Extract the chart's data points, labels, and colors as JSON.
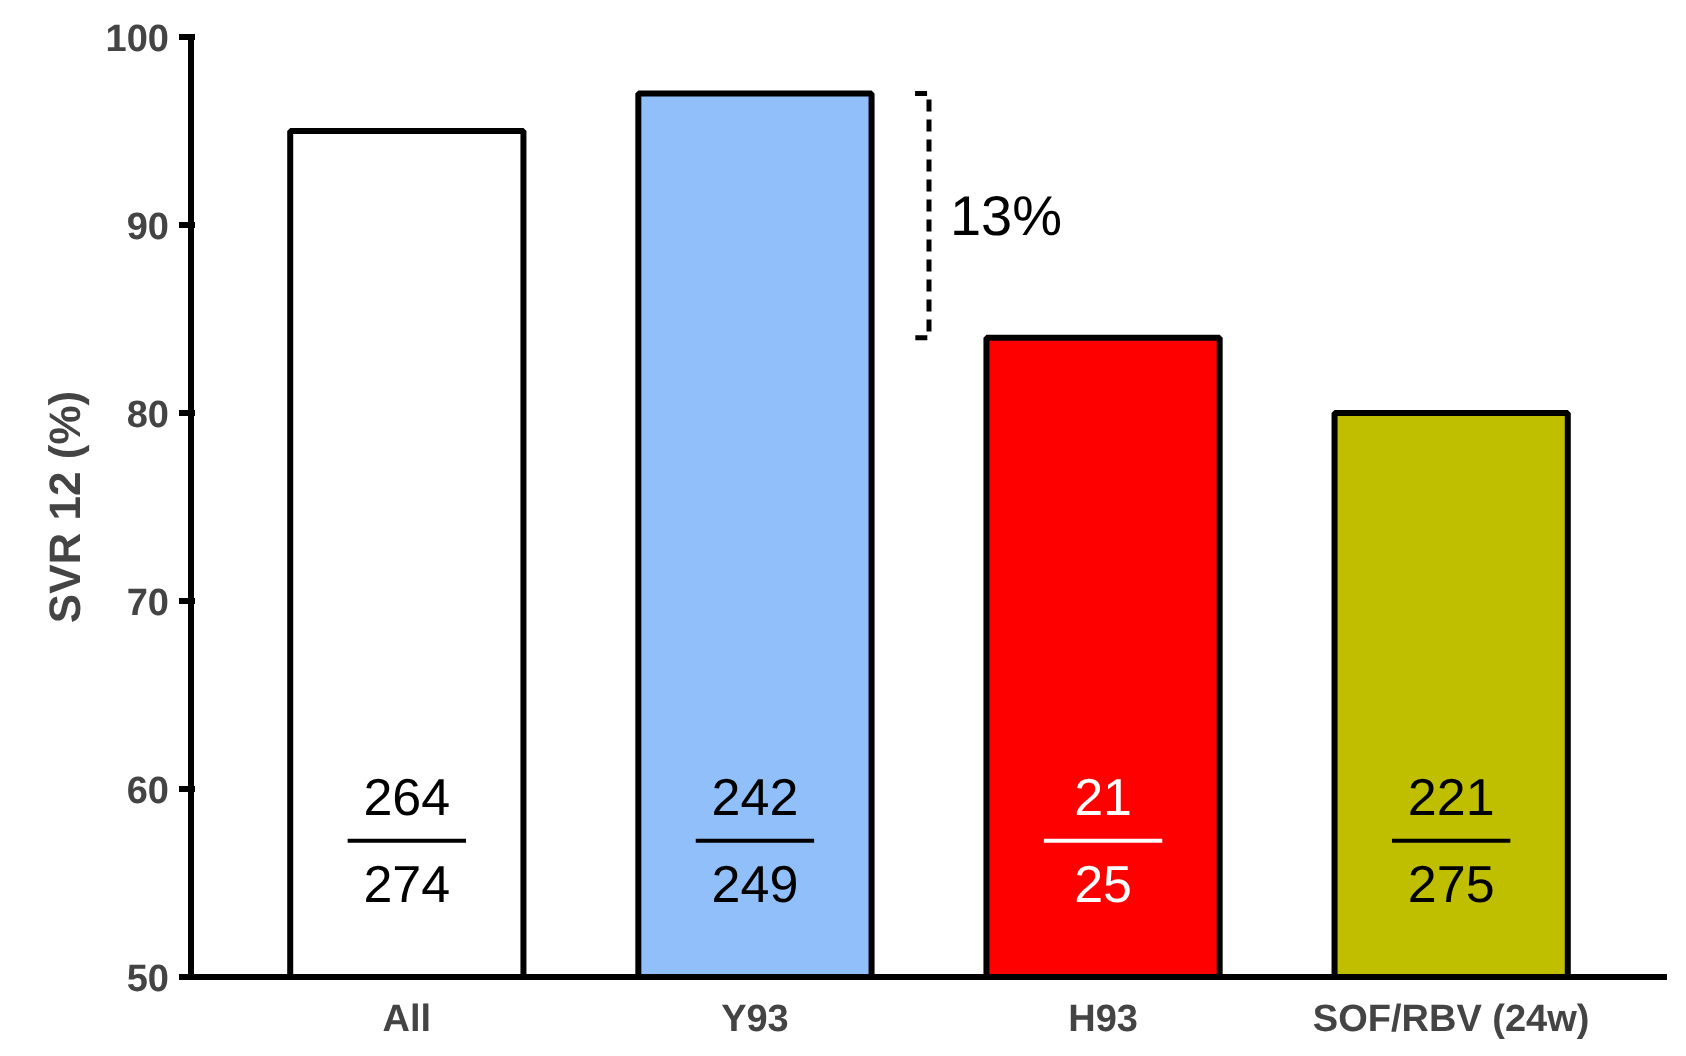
{
  "chart_data": {
    "type": "bar",
    "ylabel": "SVR 12 (%)",
    "categories": [
      "All",
      "Y93",
      "H93",
      "SOF/RBV (24w)"
    ],
    "values": [
      95,
      97,
      84,
      80
    ],
    "colors": [
      "#ffffff",
      "#90bff9",
      "#ff0000",
      "#bfbf00"
    ],
    "ylim": [
      50,
      100
    ],
    "yticks": [
      50,
      60,
      70,
      80,
      90,
      100
    ],
    "grid": false,
    "annotations": [
      "13%",
      "264\n274",
      "242\n249",
      "21\n25",
      "221\n275"
    ]
  }
}
